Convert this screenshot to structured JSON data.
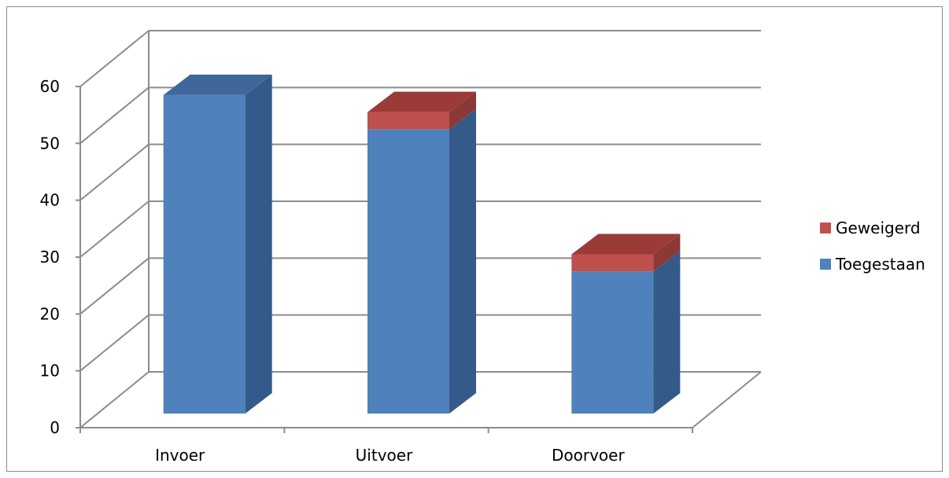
{
  "chart_data": {
    "type": "bar",
    "stacked": true,
    "three_d": true,
    "categories": [
      "Invoer",
      "Uitvoer",
      "Doorvoer"
    ],
    "series": [
      {
        "name": "Toegestaan",
        "values": [
          56,
          50,
          25
        ],
        "color": "#4f81bd",
        "side_color": "#345a8a",
        "top_color": "#3f6799"
      },
      {
        "name": "Geweigerd",
        "values": [
          0,
          3,
          3
        ],
        "color": "#c0504d",
        "side_color": "#8c3836",
        "top_color": "#9b3b38"
      }
    ],
    "ylim": [
      0,
      60
    ],
    "yticks": [
      0,
      10,
      20,
      30,
      40,
      50,
      60
    ],
    "grid": true,
    "legend_position": "right",
    "legend_order": [
      "Geweigerd",
      "Toegestaan"
    ],
    "colors": {
      "grid": "#8c8c8c",
      "axis": "#8c8c8c"
    }
  }
}
